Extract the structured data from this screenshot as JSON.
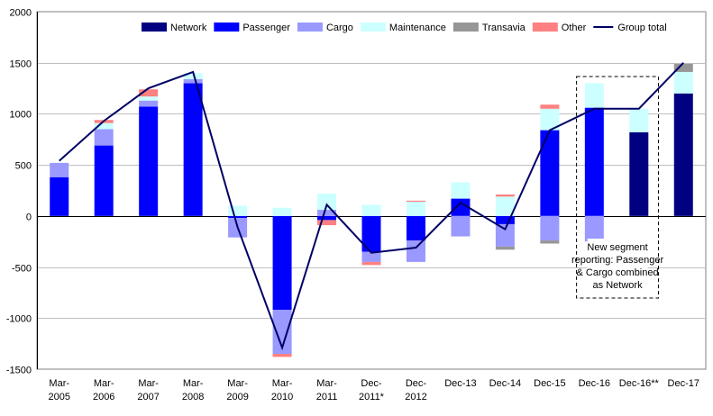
{
  "chart_data": {
    "type": "bar",
    "stacked": true,
    "categories": [
      [
        "Mar-",
        "2005"
      ],
      [
        "Mar-",
        "2006"
      ],
      [
        "Mar-",
        "2007"
      ],
      [
        "Mar-",
        "2008"
      ],
      [
        "Mar-",
        "2009"
      ],
      [
        "Mar-",
        "2010"
      ],
      [
        "Mar-",
        "2011"
      ],
      [
        "Dec-",
        "2011*"
      ],
      [
        "Dec-",
        "2012"
      ],
      [
        "Dec-13"
      ],
      [
        "Dec-14"
      ],
      [
        "Dec-15"
      ],
      [
        "Dec-16"
      ],
      [
        "Dec-16**"
      ],
      [
        "Dec-17"
      ]
    ],
    "ylim": [
      -1500,
      2000
    ],
    "yticks": [
      -1500,
      -1000,
      -500,
      0,
      500,
      1000,
      1500,
      2000
    ],
    "grid": true,
    "legend_position": "top-right",
    "series": [
      {
        "name": "Network",
        "color": "#000080",
        "values": [
          0,
          0,
          0,
          0,
          0,
          0,
          0,
          0,
          0,
          0,
          0,
          0,
          0,
          820,
          1200
        ]
      },
      {
        "name": "Passenger",
        "color": "#0000FF",
        "values": [
          380,
          690,
          1070,
          1300,
          -20,
          -920,
          -40,
          -350,
          -240,
          170,
          -80,
          840,
          1060,
          0,
          0
        ]
      },
      {
        "name": "Cargo",
        "color": "#9999FF",
        "values": [
          140,
          160,
          60,
          40,
          -190,
          -430,
          60,
          -100,
          -210,
          -200,
          -220,
          -240,
          -250,
          0,
          0
        ]
      },
      {
        "name": "Maintenance",
        "color": "#CCFFFF",
        "values": [
          0,
          60,
          40,
          60,
          100,
          80,
          160,
          110,
          140,
          160,
          190,
          210,
          240,
          230,
          210
        ]
      },
      {
        "name": "Transavia",
        "color": "#969696",
        "values": [
          0,
          0,
          0,
          0,
          0,
          0,
          0,
          0,
          0,
          0,
          -30,
          -30,
          0,
          0,
          80
        ]
      },
      {
        "name": "Other",
        "color": "#FF8080",
        "values": [
          0,
          30,
          70,
          0,
          0,
          -30,
          -50,
          -30,
          10,
          0,
          20,
          40,
          0,
          0,
          0
        ]
      }
    ],
    "line": {
      "name": "Group total",
      "color": "#000066",
      "values": [
        540,
        930,
        1250,
        1410,
        -110,
        -1290,
        110,
        -360,
        -310,
        130,
        -130,
        840,
        1050,
        1050,
        1500
      ]
    },
    "annotation": {
      "lines": [
        "New segment",
        "reporting: Passenger",
        "& Cargo combined",
        "as Network"
      ]
    }
  }
}
